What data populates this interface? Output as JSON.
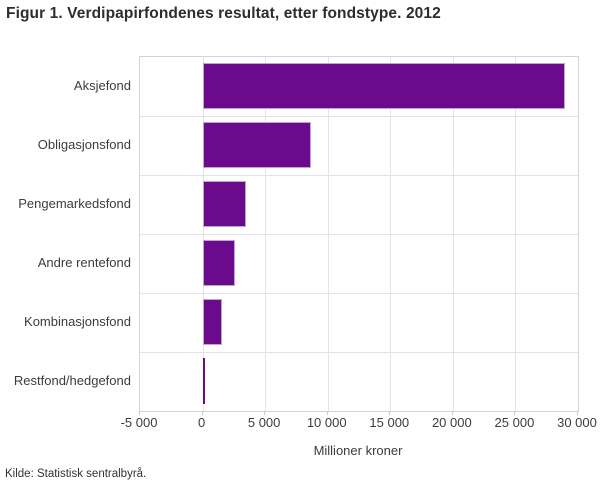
{
  "figure": {
    "title": "Figur 1. Verdipapirfondenes resultat, etter fondstype. 2012",
    "source": "Kilde: Statistisk sentralbyrå."
  },
  "chart_data": {
    "type": "bar",
    "orientation": "horizontal",
    "title": "Figur 1. Verdipapirfondenes resultat, etter fondstype. 2012",
    "categories": [
      "Aksjefond",
      "Obligasjonsfond",
      "Pengemarkedsfond",
      "Andre rentefond",
      "Kombinasjonsfond",
      "Restfond/hedgefond"
    ],
    "values": [
      29000,
      8700,
      3500,
      2600,
      1550,
      100
    ],
    "xlabel": "Millioner kroner",
    "ylabel": "",
    "xlim": [
      -5000,
      30000
    ],
    "x_ticks": [
      -5000,
      0,
      5000,
      10000,
      15000,
      20000,
      25000,
      30000
    ],
    "x_tick_labels": [
      "-5 000",
      "0",
      "5 000",
      "10 000",
      "15 000",
      "20 000",
      "25 000",
      "30 000"
    ],
    "grid": true,
    "legend": false,
    "bar_color": "#6b0a8c",
    "bar_border_color": "#bda6cc",
    "gridline_color": "#e4e4e8"
  }
}
